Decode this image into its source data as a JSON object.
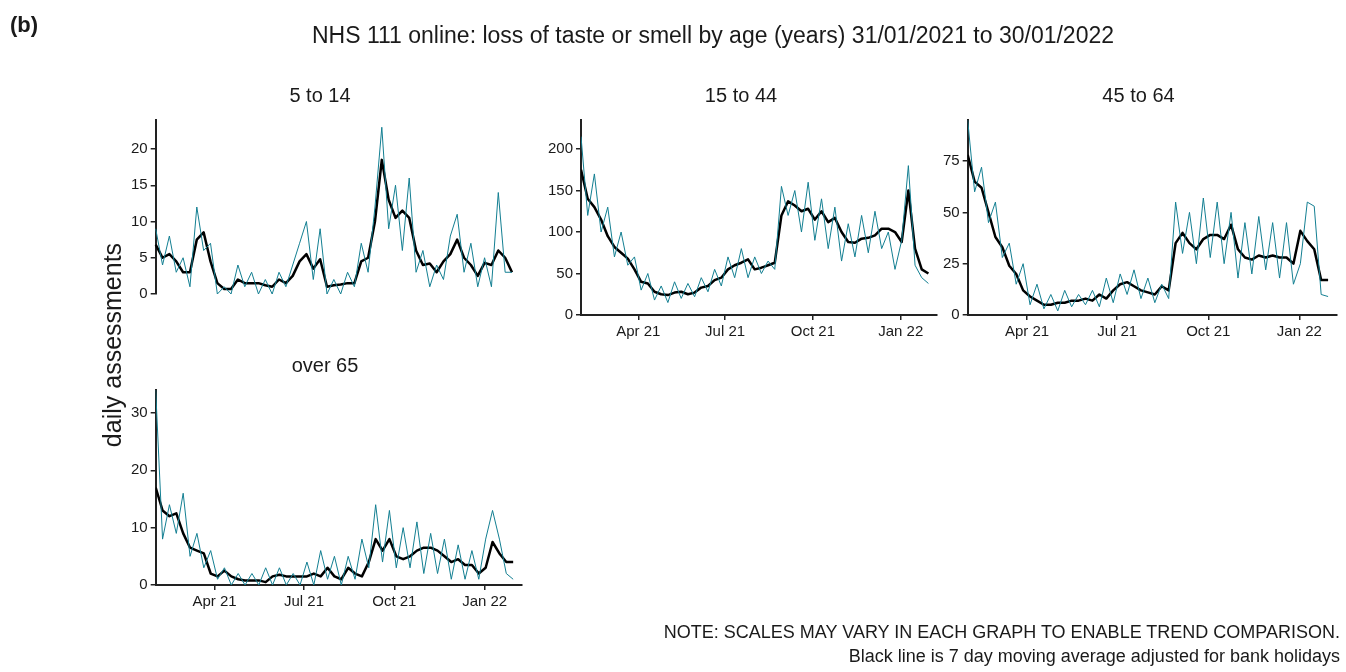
{
  "chart_data": [
    {
      "type": "other",
      "title": "NHS 111 online: loss of taste or smell by age (years) 31/01/2021 to 30/01/2022",
      "ylabel": "daily assessments",
      "annotations": [
        "(b)",
        "NOTE: SCALES MAY VARY IN EACH GRAPH TO ENABLE TREND COMPARISON.",
        "Black line is 7 day moving average adjusted for bank holidays"
      ]
    },
    {
      "type": "line",
      "title": "5 to 14",
      "tick_labels": "y",
      "marker": "none",
      "ylim": [
        0,
        24
      ],
      "yticks": [
        0,
        5,
        10,
        15,
        20
      ],
      "categories": [
        null,
        null,
        null,
        null,
        null,
        null,
        null,
        null,
        null,
        null,
        null,
        null,
        null,
        null,
        null,
        null,
        null,
        null,
        null,
        null,
        null,
        null,
        null,
        null,
        null,
        null,
        null,
        null,
        null,
        null,
        null,
        null,
        null,
        null,
        null,
        null,
        null,
        null,
        null,
        null,
        null,
        null,
        null,
        null,
        null,
        null,
        null,
        null,
        null,
        null,
        null,
        null,
        null
      ],
      "series": [
        {
          "color": "#137f92",
          "values": [
            9,
            4,
            8,
            3,
            5,
            1,
            12,
            6,
            7,
            0,
            1,
            0,
            4,
            1,
            3,
            0,
            2,
            0,
            3,
            1,
            4,
            7,
            10,
            2,
            9,
            0,
            2,
            0,
            3,
            1,
            7,
            3,
            12,
            23,
            9,
            15,
            6,
            16,
            3,
            6,
            1,
            4,
            2,
            8,
            11,
            3,
            7,
            1,
            5,
            1,
            14,
            3,
            3
          ]
        },
        {
          "color": "#000000",
          "values": [
            6.8,
            5,
            5.5,
            4.5,
            3,
            3,
            7.5,
            8.5,
            4.5,
            1.5,
            0.7,
            0.7,
            2,
            1.5,
            1.5,
            1.5,
            1.2,
            1,
            2,
            1.5,
            2.5,
            4.5,
            5.5,
            3.5,
            4.8,
            1,
            1.2,
            1.3,
            1.5,
            1.5,
            4.5,
            5,
            10,
            18.5,
            13,
            10.5,
            11.5,
            10.5,
            6,
            4,
            4.2,
            3,
            4.5,
            5.5,
            7.5,
            5,
            4,
            2.5,
            4.3,
            4,
            6,
            5,
            3
          ]
        }
      ]
    },
    {
      "type": "line",
      "title": "15 to 44",
      "marker": "none",
      "xlim": [
        "2021-01-31",
        "2022-02-08"
      ],
      "xticks": [
        {
          "value": "2021-04-01",
          "label": "Apr 21"
        },
        {
          "value": "2021-07-01",
          "label": "Jul 21"
        },
        {
          "value": "2021-10-01",
          "label": "Oct 21"
        },
        {
          "value": "2022-01-01",
          "label": "Jan 22"
        }
      ],
      "ylim": [
        0,
        235
      ],
      "yticks": [
        0,
        50,
        100,
        150,
        200
      ],
      "x": [
        "2021-01-31",
        "2021-02-07",
        "2021-02-14",
        "2021-02-21",
        "2021-02-28",
        "2021-03-07",
        "2021-03-14",
        "2021-03-21",
        "2021-03-28",
        "2021-04-04",
        "2021-04-11",
        "2021-04-18",
        "2021-04-25",
        "2021-05-02",
        "2021-05-09",
        "2021-05-16",
        "2021-05-23",
        "2021-05-30",
        "2021-06-06",
        "2021-06-13",
        "2021-06-20",
        "2021-06-27",
        "2021-07-04",
        "2021-07-11",
        "2021-07-18",
        "2021-07-25",
        "2021-08-01",
        "2021-08-08",
        "2021-08-15",
        "2021-08-22",
        "2021-08-29",
        "2021-09-05",
        "2021-09-12",
        "2021-09-19",
        "2021-09-26",
        "2021-10-03",
        "2021-10-10",
        "2021-10-17",
        "2021-10-24",
        "2021-10-31",
        "2021-11-07",
        "2021-11-14",
        "2021-11-21",
        "2021-11-28",
        "2021-12-05",
        "2021-12-12",
        "2021-12-19",
        "2021-12-26",
        "2022-01-02",
        "2022-01-09",
        "2022-01-16",
        "2022-01-23",
        "2022-01-30"
      ],
      "series": [
        {
          "color": "#137f92",
          "values": [
            215,
            120,
            170,
            100,
            130,
            70,
            100,
            60,
            70,
            30,
            50,
            18,
            35,
            15,
            40,
            20,
            38,
            22,
            45,
            28,
            55,
            35,
            70,
            45,
            80,
            45,
            70,
            50,
            65,
            55,
            155,
            120,
            150,
            100,
            160,
            90,
            140,
            80,
            130,
            65,
            110,
            70,
            120,
            75,
            125,
            80,
            100,
            55,
            90,
            180,
            60,
            45,
            38
          ]
        },
        {
          "color": "#000000",
          "values": [
            175,
            140,
            130,
            115,
            95,
            82,
            75,
            68,
            55,
            40,
            38,
            28,
            25,
            24,
            27,
            28,
            25,
            27,
            33,
            35,
            42,
            45,
            55,
            60,
            63,
            67,
            55,
            57,
            60,
            63,
            120,
            137,
            132,
            125,
            128,
            115,
            125,
            112,
            117,
            100,
            88,
            87,
            92,
            93,
            96,
            104,
            104,
            100,
            88,
            150,
            80,
            55,
            50
          ]
        }
      ]
    },
    {
      "type": "line",
      "title": "45 to 64",
      "marker": "none",
      "xlim": [
        "2021-01-31",
        "2022-02-08"
      ],
      "xticks": [
        {
          "value": "2021-04-01",
          "label": "Apr 21"
        },
        {
          "value": "2021-07-01",
          "label": "Jul 21"
        },
        {
          "value": "2021-10-01",
          "label": "Oct 21"
        },
        {
          "value": "2022-01-01",
          "label": "Jan 22"
        }
      ],
      "ylim": [
        0,
        95
      ],
      "yticks": [
        0,
        25,
        50,
        75
      ],
      "x": [
        "2021-01-31",
        "2021-02-07",
        "2021-02-14",
        "2021-02-21",
        "2021-02-28",
        "2021-03-07",
        "2021-03-14",
        "2021-03-21",
        "2021-03-28",
        "2021-04-04",
        "2021-04-11",
        "2021-04-18",
        "2021-04-25",
        "2021-05-02",
        "2021-05-09",
        "2021-05-16",
        "2021-05-23",
        "2021-05-30",
        "2021-06-06",
        "2021-06-13",
        "2021-06-20",
        "2021-06-27",
        "2021-07-04",
        "2021-07-11",
        "2021-07-18",
        "2021-07-25",
        "2021-08-01",
        "2021-08-08",
        "2021-08-15",
        "2021-08-22",
        "2021-08-29",
        "2021-09-05",
        "2021-09-12",
        "2021-09-19",
        "2021-09-26",
        "2021-10-03",
        "2021-10-10",
        "2021-10-17",
        "2021-10-24",
        "2021-10-31",
        "2021-11-07",
        "2021-11-14",
        "2021-11-21",
        "2021-11-28",
        "2021-12-05",
        "2021-12-12",
        "2021-12-19",
        "2021-12-26",
        "2022-01-02",
        "2022-01-09",
        "2022-01-16",
        "2022-01-23",
        "2022-01-30"
      ],
      "series": [
        {
          "color": "#137f92",
          "values": [
            95,
            60,
            72,
            45,
            55,
            28,
            35,
            15,
            25,
            5,
            15,
            3,
            10,
            2,
            12,
            4,
            10,
            5,
            12,
            4,
            18,
            6,
            20,
            10,
            22,
            8,
            18,
            6,
            15,
            8,
            55,
            30,
            50,
            25,
            57,
            28,
            55,
            25,
            50,
            18,
            45,
            20,
            48,
            22,
            45,
            18,
            45,
            15,
            25,
            55,
            53,
            10,
            9
          ]
        },
        {
          "color": "#000000",
          "values": [
            78,
            65,
            62,
            50,
            38,
            33,
            24,
            20,
            12,
            9,
            7,
            5,
            5,
            6,
            6,
            7,
            7,
            8,
            7,
            10,
            8,
            12,
            15,
            16,
            14,
            12,
            11,
            10,
            14,
            12,
            35,
            40,
            35,
            32,
            37,
            39,
            39,
            37,
            44,
            32,
            28,
            27,
            29,
            28,
            29,
            28,
            28,
            25,
            41,
            36,
            32,
            17,
            17
          ]
        }
      ]
    },
    {
      "type": "line",
      "title": "over 65",
      "marker": "none",
      "xlim": [
        "2021-01-31",
        "2022-02-08"
      ],
      "xticks": [
        {
          "value": "2021-04-01",
          "label": "Apr 21"
        },
        {
          "value": "2021-07-01",
          "label": "Jul 21"
        },
        {
          "value": "2021-10-01",
          "label": "Oct 21"
        },
        {
          "value": "2022-01-01",
          "label": "Jan 22"
        }
      ],
      "ylim": [
        0,
        34
      ],
      "yticks": [
        0,
        10,
        20,
        30
      ],
      "x": [
        "2021-01-31",
        "2021-02-07",
        "2021-02-14",
        "2021-02-21",
        "2021-02-28",
        "2021-03-07",
        "2021-03-14",
        "2021-03-21",
        "2021-03-28",
        "2021-04-04",
        "2021-04-11",
        "2021-04-18",
        "2021-04-25",
        "2021-05-02",
        "2021-05-09",
        "2021-05-16",
        "2021-05-23",
        "2021-05-30",
        "2021-06-06",
        "2021-06-13",
        "2021-06-20",
        "2021-06-27",
        "2021-07-04",
        "2021-07-11",
        "2021-07-18",
        "2021-07-25",
        "2021-08-01",
        "2021-08-08",
        "2021-08-15",
        "2021-08-22",
        "2021-08-29",
        "2021-09-05",
        "2021-09-12",
        "2021-09-19",
        "2021-09-26",
        "2021-10-03",
        "2021-10-10",
        "2021-10-17",
        "2021-10-24",
        "2021-10-31",
        "2021-11-07",
        "2021-11-14",
        "2021-11-21",
        "2021-11-28",
        "2021-12-05",
        "2021-12-12",
        "2021-12-19",
        "2021-12-26",
        "2022-01-02",
        "2022-01-09",
        "2022-01-16",
        "2022-01-23",
        "2022-01-30"
      ],
      "series": [
        {
          "color": "#137f92",
          "values": [
            34,
            8,
            14,
            9,
            16,
            5,
            9,
            3,
            6,
            1,
            3,
            0,
            2,
            0,
            2,
            0,
            3,
            0,
            3,
            0,
            2,
            0,
            4,
            0,
            6,
            1,
            5,
            0,
            5,
            1,
            8,
            3,
            14,
            4,
            13,
            3,
            10,
            3,
            11,
            2,
            9,
            2,
            8,
            1,
            7,
            1,
            6,
            1,
            8,
            13,
            8,
            2,
            1
          ]
        },
        {
          "color": "#000000",
          "values": [
            17,
            13,
            12,
            12.5,
            9,
            6.5,
            6,
            5.5,
            2,
            1.5,
            2.5,
            1.5,
            1,
            0.8,
            0.8,
            0.8,
            0.5,
            1.5,
            1.8,
            1.5,
            1.5,
            1.5,
            1.5,
            2,
            1.5,
            3,
            1.5,
            1,
            3,
            2,
            1.5,
            4,
            8,
            6,
            8,
            5,
            4.5,
            5,
            6,
            6.5,
            6.5,
            6,
            5,
            4,
            4.5,
            3.5,
            3.5,
            2,
            3,
            7.5,
            5.5,
            4,
            4
          ]
        }
      ]
    }
  ]
}
